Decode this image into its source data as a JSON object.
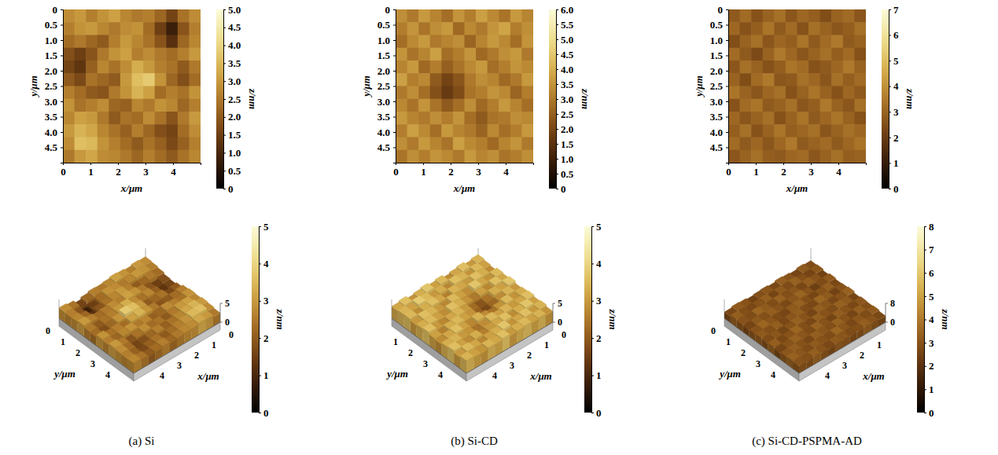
{
  "chart_data": [
    {
      "type": "heatmap",
      "caption": "(a) Si",
      "xlabel": "x/μm",
      "ylabel": "y/μm",
      "xlim": [
        0,
        5
      ],
      "ylim": [
        0,
        5
      ],
      "xticks": [
        0,
        1,
        2,
        3,
        4
      ],
      "yticks": [
        0,
        0.5,
        {
          "value": 1,
          "label": "1.0"
        },
        1.5,
        {
          "value": 2,
          "label": "2.0"
        },
        2.5,
        {
          "value": 3,
          "label": "3.0"
        },
        3.5,
        {
          "value": 4,
          "label": "4.0"
        },
        4.5
      ],
      "cells": [
        [
          2.8,
          3.0,
          2.6,
          2.9,
          3.1,
          2.7,
          2.5,
          2.6,
          2.2,
          1.6,
          2.4,
          2.8
        ],
        [
          2.6,
          2.9,
          3.0,
          2.7,
          2.5,
          2.8,
          2.9,
          2.3,
          1.5,
          0.8,
          1.9,
          2.6
        ],
        [
          2.3,
          2.5,
          2.2,
          2.0,
          2.6,
          3.0,
          2.7,
          2.4,
          1.9,
          1.2,
          2.2,
          2.7
        ],
        [
          1.8,
          1.5,
          1.9,
          2.5,
          2.9,
          3.1,
          2.6,
          2.8,
          2.5,
          2.3,
          2.6,
          3.0
        ],
        [
          1.6,
          1.3,
          2.1,
          2.7,
          2.4,
          2.8,
          3.3,
          3.0,
          2.6,
          2.4,
          2.0,
          2.5
        ],
        [
          2.0,
          1.7,
          2.4,
          2.2,
          2.0,
          3.0,
          3.6,
          3.8,
          2.9,
          2.2,
          1.8,
          2.3
        ],
        [
          2.6,
          2.3,
          2.0,
          1.9,
          2.5,
          2.9,
          3.4,
          3.1,
          2.3,
          2.6,
          2.4,
          2.9
        ],
        [
          2.9,
          2.4,
          2.6,
          2.8,
          2.2,
          2.1,
          2.7,
          2.5,
          2.9,
          2.7,
          2.2,
          2.6
        ],
        [
          2.7,
          3.1,
          3.0,
          2.5,
          2.0,
          2.4,
          2.3,
          2.8,
          2.4,
          1.9,
          2.5,
          3.0
        ],
        [
          3.0,
          3.4,
          3.2,
          2.7,
          2.4,
          2.1,
          2.6,
          2.2,
          1.8,
          1.6,
          2.3,
          2.8
        ],
        [
          2.8,
          3.6,
          3.5,
          2.9,
          2.6,
          2.3,
          2.0,
          2.4,
          2.1,
          1.7,
          2.1,
          2.6
        ],
        [
          2.5,
          3.0,
          3.2,
          2.8,
          2.7,
          2.5,
          2.2,
          2.6,
          2.3,
          2.0,
          2.4,
          2.7
        ]
      ],
      "colorbar": {
        "label": "z/nm",
        "range": [
          0,
          5
        ],
        "ticks": [
          0,
          0.5,
          {
            "value": 1,
            "label": "1.0"
          },
          1.5,
          {
            "value": 2,
            "label": "2.0"
          },
          2.5,
          {
            "value": 3,
            "label": "3.0"
          },
          3.5,
          {
            "value": 4,
            "label": "4.0"
          },
          4.5,
          {
            "value": 5,
            "label": "5.0"
          }
        ]
      },
      "surface": {
        "type": "surface",
        "xlabel": "x/μm",
        "ylabel": "y/μm",
        "xlim": [
          0,
          5
        ],
        "ylim": [
          0,
          5
        ],
        "zlim": [
          0,
          5
        ],
        "xticks": [
          0,
          1,
          2,
          3,
          4
        ],
        "yticks": [
          0,
          1,
          2,
          3,
          4
        ],
        "zticks": [
          0,
          5
        ],
        "colorbar": {
          "label": "z/nm",
          "range": [
            0,
            5
          ],
          "ticks": [
            0,
            1,
            2,
            3,
            4,
            5
          ]
        }
      }
    },
    {
      "type": "heatmap",
      "caption": "(b) Si-CD",
      "xlabel": "x/μm",
      "ylabel": "y/μm",
      "xlim": [
        0,
        5
      ],
      "ylim": [
        0,
        5
      ],
      "xticks": [
        0,
        1,
        2,
        3,
        4
      ],
      "yticks": [
        0,
        0.5,
        {
          "value": 1,
          "label": "1.0"
        },
        1.5,
        {
          "value": 2,
          "label": "2.0"
        },
        2.5,
        {
          "value": 3,
          "label": "3.0"
        },
        3.5,
        {
          "value": 4,
          "label": "4.0"
        },
        4.5
      ],
      "cells": [
        [
          3.4,
          3.0,
          3.6,
          3.2,
          2.8,
          3.5,
          3.1,
          3.7,
          3.3,
          2.9,
          3.6,
          3.2
        ],
        [
          3.1,
          3.5,
          2.9,
          3.4,
          3.6,
          2.7,
          3.3,
          3.0,
          3.5,
          3.8,
          3.1,
          3.4
        ],
        [
          2.8,
          3.3,
          3.6,
          3.0,
          3.2,
          3.4,
          2.6,
          3.2,
          3.6,
          3.3,
          2.8,
          3.5
        ],
        [
          3.5,
          2.9,
          3.2,
          3.7,
          2.8,
          3.1,
          3.5,
          2.7,
          3.0,
          3.4,
          3.6,
          3.0
        ],
        [
          3.2,
          3.6,
          2.7,
          3.1,
          2.5,
          2.9,
          3.3,
          3.6,
          2.8,
          3.1,
          3.5,
          3.3
        ],
        [
          3.7,
          3.1,
          3.3,
          2.4,
          1.9,
          2.3,
          3.0,
          3.4,
          3.2,
          2.7,
          3.0,
          3.6
        ],
        [
          3.0,
          3.4,
          2.8,
          2.2,
          1.7,
          2.1,
          2.9,
          3.1,
          3.5,
          3.3,
          2.6,
          3.1
        ],
        [
          3.3,
          2.9,
          3.5,
          2.9,
          2.4,
          2.8,
          3.4,
          2.7,
          3.1,
          3.6,
          3.2,
          2.8
        ],
        [
          3.6,
          3.2,
          3.0,
          3.4,
          3.1,
          3.5,
          2.8,
          2.4,
          2.9,
          3.0,
          3.4,
          3.3
        ],
        [
          3.1,
          3.7,
          3.3,
          2.8,
          3.6,
          3.2,
          3.0,
          2.6,
          3.3,
          2.8,
          3.1,
          3.6
        ],
        [
          3.4,
          3.0,
          3.6,
          3.2,
          2.9,
          3.7,
          3.3,
          3.1,
          2.7,
          3.2,
          3.5,
          3.0
        ],
        [
          2.9,
          3.4,
          3.1,
          3.5,
          3.3,
          3.0,
          3.6,
          3.2,
          3.4,
          2.9,
          3.1,
          3.4
        ]
      ],
      "colorbar": {
        "label": "z/nm",
        "range": [
          0,
          6
        ],
        "ticks": [
          0,
          0.5,
          {
            "value": 1,
            "label": "1.0"
          },
          1.5,
          {
            "value": 2,
            "label": "2.0"
          },
          2.5,
          {
            "value": 3,
            "label": "3.0"
          },
          3.5,
          {
            "value": 4,
            "label": "4.0"
          },
          4.5,
          {
            "value": 5,
            "label": "5.0"
          },
          5.5,
          {
            "value": 6,
            "label": "6.0"
          }
        ]
      },
      "surface": {
        "type": "surface",
        "xlabel": "x/μm",
        "ylabel": "y/μm",
        "xlim": [
          0,
          5
        ],
        "ylim": [
          0,
          5
        ],
        "zlim": [
          0,
          5
        ],
        "xticks": [
          0,
          1,
          2,
          3,
          4
        ],
        "yticks": [
          1,
          2,
          3,
          4
        ],
        "zticks": [
          0,
          5
        ],
        "colorbar": {
          "label": "z/nm",
          "range": [
            0,
            5
          ],
          "ticks": [
            0,
            1,
            2,
            3,
            4,
            5
          ]
        }
      }
    },
    {
      "type": "heatmap",
      "caption": "(c) Si-CD-PSPMA-AD",
      "xlabel": "x/μm",
      "ylabel": "y/μm",
      "xlim": [
        0,
        5
      ],
      "ylim": [
        0,
        5
      ],
      "xticks": [
        0,
        1,
        2,
        3,
        4
      ],
      "yticks": [
        0,
        0.5,
        {
          "value": 1,
          "label": "1.0"
        },
        1.5,
        {
          "value": 2,
          "label": "2.0"
        },
        2.5,
        {
          "value": 3,
          "label": "3.0"
        },
        3.5,
        {
          "value": 4,
          "label": "4.0"
        },
        4.5
      ],
      "cells": [
        [
          2.8,
          3.2,
          2.6,
          3.0,
          3.3,
          2.7,
          3.1,
          2.9,
          2.5,
          3.0,
          3.2,
          2.7
        ],
        [
          3.1,
          2.6,
          2.9,
          3.4,
          2.8,
          3.2,
          2.6,
          3.3,
          3.0,
          2.7,
          2.9,
          3.3
        ],
        [
          2.5,
          3.0,
          3.3,
          2.7,
          3.1,
          2.9,
          3.4,
          2.8,
          3.2,
          3.5,
          2.8,
          3.0
        ],
        [
          3.2,
          2.8,
          2.4,
          3.0,
          3.5,
          3.1,
          2.7,
          3.0,
          3.3,
          2.9,
          3.2,
          2.6
        ],
        [
          2.7,
          3.3,
          3.0,
          2.6,
          2.9,
          3.4,
          3.2,
          2.6,
          2.8,
          3.1,
          3.5,
          3.0
        ],
        [
          3.0,
          2.5,
          3.2,
          3.5,
          2.7,
          2.8,
          3.3,
          3.1,
          2.7,
          3.3,
          2.9,
          3.2
        ],
        [
          3.4,
          3.0,
          2.7,
          3.1,
          3.3,
          2.6,
          3.0,
          3.4,
          3.0,
          2.6,
          3.1,
          2.8
        ],
        [
          2.6,
          3.2,
          3.4,
          2.8,
          3.0,
          3.3,
          2.7,
          2.9,
          3.5,
          3.0,
          2.7,
          3.3
        ],
        [
          3.1,
          2.7,
          3.0,
          3.3,
          2.6,
          3.0,
          3.4,
          2.8,
          3.1,
          3.4,
          3.0,
          2.6
        ],
        [
          2.9,
          3.3,
          2.6,
          3.0,
          3.4,
          2.9,
          3.1,
          3.3,
          2.7,
          3.0,
          3.3,
          3.1
        ],
        [
          3.2,
          2.8,
          3.1,
          2.7,
          3.1,
          3.5,
          2.8,
          3.0,
          3.2,
          2.8,
          3.1,
          3.4
        ],
        [
          2.7,
          3.0,
          3.3,
          2.9,
          2.8,
          3.1,
          3.2,
          2.7,
          3.0,
          3.3,
          2.9,
          3.0
        ]
      ],
      "colorbar": {
        "label": "z/nm",
        "range": [
          0,
          7
        ],
        "ticks": [
          0,
          1,
          2,
          3,
          4,
          5,
          6,
          7
        ]
      },
      "surface": {
        "type": "surface",
        "xlabel": "x/μm",
        "ylabel": "y/μm",
        "xlim": [
          0,
          5
        ],
        "ylim": [
          0,
          5
        ],
        "zlim": [
          0,
          8
        ],
        "xticks": [
          1,
          2,
          3,
          4
        ],
        "yticks": [
          0,
          1,
          2,
          3,
          4
        ],
        "zticks": [
          0,
          8
        ],
        "colorbar": {
          "label": "z/nm",
          "range": [
            0,
            8
          ],
          "ticks": [
            0,
            1,
            2,
            3,
            4,
            5,
            6,
            7,
            8
          ]
        }
      }
    }
  ]
}
